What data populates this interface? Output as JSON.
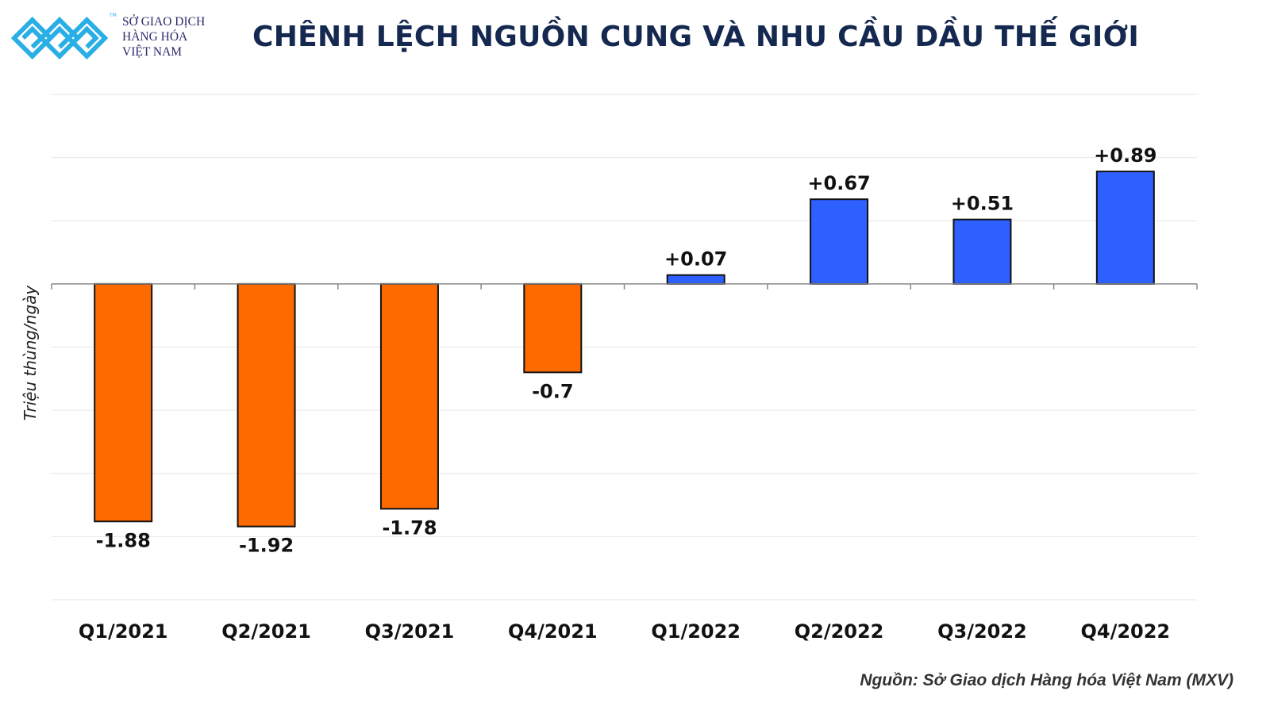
{
  "header": {
    "logo_text": [
      "SỞ GIAO DỊCH",
      "HÀNG HÓA",
      "VIỆT NAM"
    ],
    "logo_tm": "TM",
    "title": "CHÊNH LỆCH NGUỒN CUNG VÀ NHU CẦU DẦU THẾ GIỚI"
  },
  "footer": {
    "source": "Nguồn: Sở Giao dịch Hàng hóa Việt Nam (MXV)"
  },
  "chart_data": {
    "type": "bar",
    "title": "CHÊNH LỆCH NGUỒN CUNG VÀ NHU CẦU DẦU THẾ GIỚI",
    "xlabel": "",
    "ylabel": "Triệu thùng/ngày",
    "categories": [
      "Q1/2021",
      "Q2/2021",
      "Q3/2021",
      "Q4/2021",
      "Q1/2022",
      "Q2/2022",
      "Q3/2022",
      "Q4/2022"
    ],
    "values": [
      -1.88,
      -1.92,
      -1.78,
      -0.7,
      0.07,
      0.67,
      0.51,
      0.89
    ],
    "data_labels": [
      "-1.88",
      "-1.92",
      "-1.78",
      "-0.7",
      "+0.07",
      "+0.67",
      "+0.51",
      "+0.89"
    ],
    "ylim": [
      -2.5,
      1.5
    ],
    "grid": true,
    "y_tick_labels_shown": false,
    "colors": {
      "negative": "#FF6A00",
      "positive": "#2E5FFF",
      "outline": "#111111",
      "grid": "#e6e6e6"
    }
  }
}
